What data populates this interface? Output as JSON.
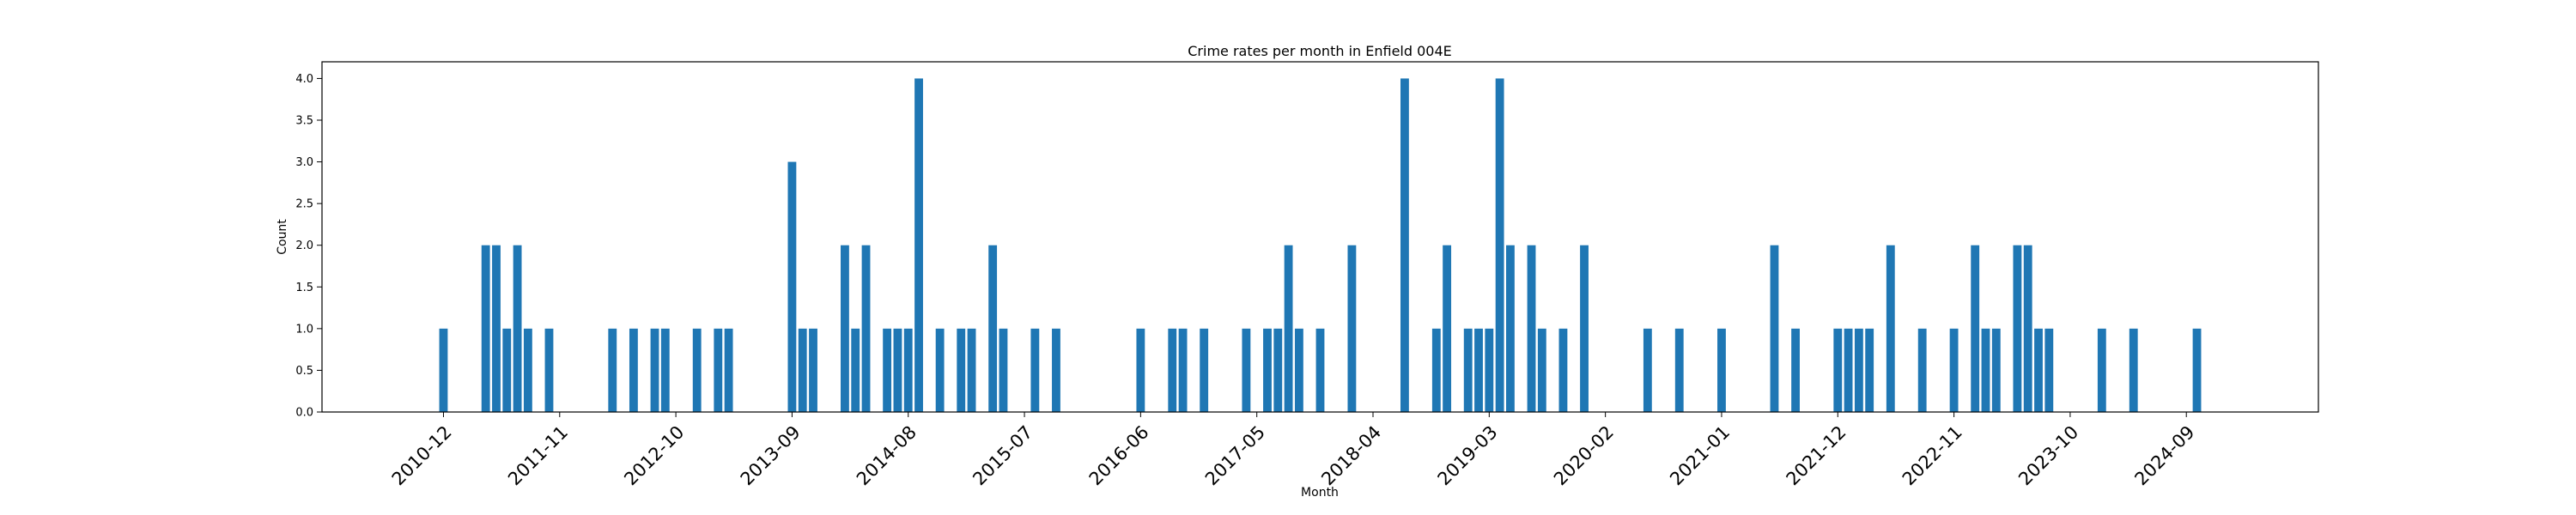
{
  "chart_data": {
    "type": "bar",
    "title": "Crime rates per month in Enfield 004E",
    "xlabel": "Month",
    "ylabel": "Count",
    "ylim": [
      0,
      4.2
    ],
    "yticks": [
      0.0,
      0.5,
      1.0,
      1.5,
      2.0,
      2.5,
      3.0,
      3.5,
      4.0
    ],
    "ytick_labels": [
      "0.0",
      "0.5",
      "1.0",
      "1.5",
      "2.0",
      "2.5",
      "3.0",
      "3.5",
      "4.0"
    ],
    "xtick_labels": [
      "2010-12",
      "2011-11",
      "2012-10",
      "2013-09",
      "2014-08",
      "2015-07",
      "2016-06",
      "2017-05",
      "2018-04",
      "2019-03",
      "2020-02",
      "2021-01",
      "2021-12",
      "2022-11",
      "2023-10",
      "2024-09"
    ],
    "grid": false,
    "categories": [
      "2010-12",
      "2011-04",
      "2011-05",
      "2011-06",
      "2011-07",
      "2011-08",
      "2011-10",
      "2012-04",
      "2012-06",
      "2012-08",
      "2012-09",
      "2012-12",
      "2013-02",
      "2013-03",
      "2013-09",
      "2013-10",
      "2013-11",
      "2014-02",
      "2014-03",
      "2014-04",
      "2014-06",
      "2014-07",
      "2014-08",
      "2014-09",
      "2014-11",
      "2015-01",
      "2015-02",
      "2015-04",
      "2015-05",
      "2015-08",
      "2015-10",
      "2016-06",
      "2016-09",
      "2016-10",
      "2016-12",
      "2017-04",
      "2017-06",
      "2017-07",
      "2017-08",
      "2017-09",
      "2017-11",
      "2018-02",
      "2018-07",
      "2018-10",
      "2018-11",
      "2019-01",
      "2019-02",
      "2019-03",
      "2019-04",
      "2019-05",
      "2019-07",
      "2019-08",
      "2019-10",
      "2019-12",
      "2020-06",
      "2020-09",
      "2021-01",
      "2021-06",
      "2021-08",
      "2021-12",
      "2022-01",
      "2022-02",
      "2022-03",
      "2022-05",
      "2022-08",
      "2022-11",
      "2023-01",
      "2023-02",
      "2023-03",
      "2023-05",
      "2023-06",
      "2023-07",
      "2023-08",
      "2024-01",
      "2024-04",
      "2024-10"
    ],
    "values": [
      1,
      2,
      2,
      1,
      2,
      1,
      1,
      1,
      1,
      1,
      1,
      1,
      1,
      1,
      3,
      1,
      1,
      2,
      1,
      2,
      1,
      1,
      1,
      4,
      1,
      1,
      1,
      2,
      1,
      1,
      1,
      1,
      1,
      1,
      1,
      1,
      1,
      1,
      2,
      1,
      1,
      2,
      4,
      1,
      2,
      1,
      1,
      1,
      4,
      2,
      2,
      1,
      1,
      2,
      1,
      1,
      1,
      2,
      1,
      1,
      1,
      1,
      1,
      2,
      1,
      1,
      2,
      1,
      1,
      2,
      2,
      1,
      1,
      1,
      1,
      1
    ]
  }
}
